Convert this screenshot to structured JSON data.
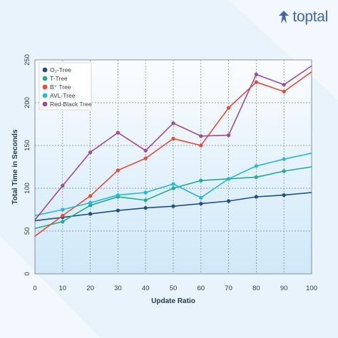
{
  "brand": {
    "logo_text": "toptal",
    "logo_icon": "toptal-diamond-icon",
    "color": "#3e66b0"
  },
  "chart_data": {
    "type": "line",
    "title": "",
    "xlabel": "Update Ratio",
    "ylabel": "Total Time in Seconds",
    "xlim": [
      0,
      100
    ],
    "ylim": [
      0,
      250
    ],
    "xticks": [
      0,
      10,
      20,
      30,
      40,
      50,
      60,
      70,
      80,
      90,
      100
    ],
    "yticks": [
      0,
      50,
      100,
      150,
      200,
      250
    ],
    "grid": true,
    "legend_position": "top-left",
    "x": [
      0,
      10,
      20,
      30,
      40,
      50,
      60,
      70,
      80,
      90,
      100
    ],
    "series": [
      {
        "name": "O₂-Tree",
        "color": "#1f4e8c",
        "values": [
          62,
          66,
          70,
          74,
          77,
          79,
          82,
          85,
          90,
          92,
          95
        ]
      },
      {
        "name": "T-Tree",
        "color": "#1cae8e",
        "values": [
          53,
          61,
          80,
          90,
          86,
          100,
          109,
          111,
          113,
          120,
          125
        ]
      },
      {
        "name": "B⁺ Tree",
        "color": "#ec4a33",
        "values": [
          44,
          68,
          91,
          121,
          135,
          158,
          150,
          194,
          224,
          213,
          236
        ]
      },
      {
        "name": "AVL-Tree",
        "color": "#22b8e0",
        "values": [
          68,
          75,
          83,
          92,
          95,
          105,
          89,
          111,
          126,
          134,
          141
        ]
      },
      {
        "name": "Red-Black Tree",
        "color": "#a04a98",
        "values": [
          63,
          103,
          142,
          165,
          144,
          176,
          161,
          162,
          233,
          221,
          243
        ]
      }
    ]
  }
}
